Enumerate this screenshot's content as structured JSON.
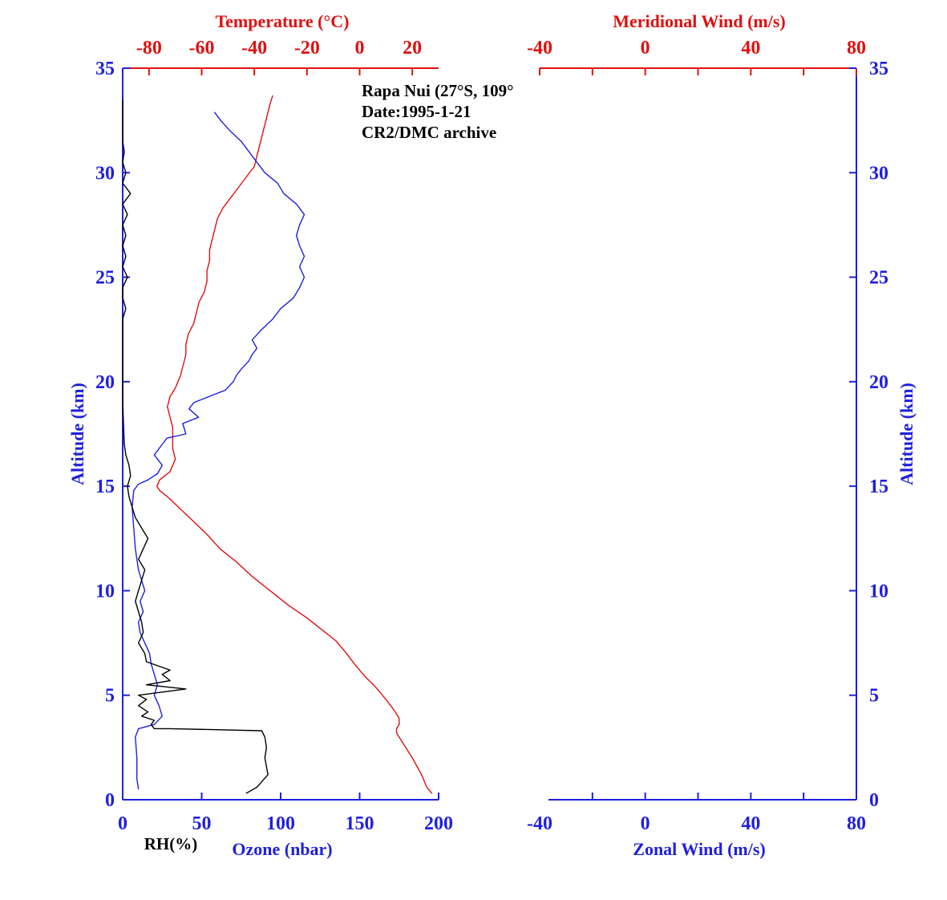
{
  "chart_data": [
    {
      "type": "line",
      "panel": "left",
      "annotation": [
        "Rapa Nui (27°S, 109°",
        "Date:1995-1-21",
        "CR2/DMC archive"
      ],
      "ylabel": "Altitude (km)",
      "ylim": [
        0,
        35
      ],
      "yticks": [
        "0",
        "5",
        "10",
        "15",
        "20",
        "25",
        "30",
        "35"
      ],
      "x_bottom": {
        "label": "Ozone (nbar)",
        "lim": [
          0,
          200
        ],
        "ticks": [
          "0",
          "50",
          "100",
          "150",
          "200"
        ]
      },
      "x_bottom_secondary_label": "RH(%)",
      "x_top": {
        "label": "Temperature (°C)",
        "lim": [
          -90,
          30
        ],
        "ticks": [
          "-80",
          "-60",
          "-40",
          "-20",
          "0",
          "20"
        ]
      },
      "colors": {
        "ozone": "#1f1fe0",
        "temperature": "#e01010",
        "rh": "#000000",
        "axis": "#1f1fe0"
      },
      "series": [
        {
          "name": "Temperature (°C)",
          "axis": "top",
          "points": [
            [
              27.5,
              0.3
            ],
            [
              25.5,
              0.6
            ],
            [
              23.5,
              1.2
            ],
            [
              20,
              2.0
            ],
            [
              16,
              2.8
            ],
            [
              14,
              3.2
            ],
            [
              14,
              3.4
            ],
            [
              15,
              3.6
            ],
            [
              15,
              3.9
            ],
            [
              13,
              4.3
            ],
            [
              10,
              4.8
            ],
            [
              6,
              5.4
            ],
            [
              2,
              5.9
            ],
            [
              -2,
              6.5
            ],
            [
              -5,
              7.0
            ],
            [
              -9,
              7.6
            ],
            [
              -14,
              8.1
            ],
            [
              -20,
              8.7
            ],
            [
              -27,
              9.3
            ],
            [
              -34,
              10.0
            ],
            [
              -41,
              10.7
            ],
            [
              -47,
              11.4
            ],
            [
              -53,
              12.0
            ],
            [
              -58,
              12.7
            ],
            [
              -63,
              13.3
            ],
            [
              -68,
              13.9
            ],
            [
              -73,
              14.5
            ],
            [
              -76,
              14.8
            ],
            [
              -77,
              15.0
            ],
            [
              -76,
              15.3
            ],
            [
              -72,
              15.7
            ],
            [
              -70,
              16.3
            ],
            [
              -71,
              16.8
            ],
            [
              -71,
              17.3
            ],
            [
              -71,
              17.8
            ],
            [
              -72,
              18.3
            ],
            [
              -73,
              18.8
            ],
            [
              -72,
              19.3
            ],
            [
              -70,
              19.7
            ],
            [
              -68,
              20.3
            ],
            [
              -67,
              20.8
            ],
            [
              -66,
              21.3
            ],
            [
              -66,
              21.8
            ],
            [
              -65,
              22.3
            ],
            [
              -63,
              22.8
            ],
            [
              -62,
              23.3
            ],
            [
              -61,
              23.8
            ],
            [
              -59,
              24.3
            ],
            [
              -58,
              24.8
            ],
            [
              -58,
              25.3
            ],
            [
              -57,
              25.8
            ],
            [
              -57,
              26.3
            ],
            [
              -56,
              26.8
            ],
            [
              -55,
              27.3
            ],
            [
              -54,
              27.8
            ],
            [
              -52,
              28.3
            ],
            [
              -49,
              28.8
            ],
            [
              -46,
              29.3
            ],
            [
              -43,
              29.8
            ],
            [
              -40,
              30.3
            ],
            [
              -39,
              30.8
            ],
            [
              -38,
              31.3
            ],
            [
              -37,
              31.8
            ],
            [
              -36,
              32.3
            ],
            [
              -35,
              32.8
            ],
            [
              -34,
              33.3
            ],
            [
              -33,
              33.7
            ]
          ]
        },
        {
          "name": "Ozone (nbar)",
          "axis": "bottom",
          "points": [
            [
              10,
              0.5
            ],
            [
              9,
              1.0
            ],
            [
              9,
              2.0
            ],
            [
              8,
              3.0
            ],
            [
              10,
              3.4
            ],
            [
              20,
              3.6
            ],
            [
              25,
              4.0
            ],
            [
              23,
              4.5
            ],
            [
              20,
              5.0
            ],
            [
              22,
              5.5
            ],
            [
              20,
              6.0
            ],
            [
              18,
              6.5
            ],
            [
              17,
              7.0
            ],
            [
              14,
              7.5
            ],
            [
              11,
              8.0
            ],
            [
              10,
              8.5
            ],
            [
              13,
              9.0
            ],
            [
              11,
              9.5
            ],
            [
              14,
              10.0
            ],
            [
              12,
              10.5
            ],
            [
              10,
              11.0
            ],
            [
              8,
              12.0
            ],
            [
              7,
              13.0
            ],
            [
              6,
              14.0
            ],
            [
              7,
              14.8
            ],
            [
              10,
              15.1
            ],
            [
              16,
              15.3
            ],
            [
              22,
              15.6
            ],
            [
              25,
              16.0
            ],
            [
              20,
              16.5
            ],
            [
              25,
              17.0
            ],
            [
              28,
              17.3
            ],
            [
              40,
              17.5
            ],
            [
              38,
              18.0
            ],
            [
              48,
              18.3
            ],
            [
              42,
              18.7
            ],
            [
              45,
              19.0
            ],
            [
              55,
              19.3
            ],
            [
              65,
              19.6
            ],
            [
              70,
              20.0
            ],
            [
              72,
              20.3
            ],
            [
              75,
              20.6
            ],
            [
              80,
              21.0
            ],
            [
              82,
              21.3
            ],
            [
              85,
              21.6
            ],
            [
              82,
              22.0
            ],
            [
              88,
              22.5
            ],
            [
              95,
              23.0
            ],
            [
              100,
              23.5
            ],
            [
              108,
              24.0
            ],
            [
              112,
              24.5
            ],
            [
              115,
              25.0
            ],
            [
              112,
              25.5
            ],
            [
              115,
              26.0
            ],
            [
              112,
              26.5
            ],
            [
              110,
              27.0
            ],
            [
              112,
              27.5
            ],
            [
              115,
              28.0
            ],
            [
              110,
              28.5
            ],
            [
              102,
              29.0
            ],
            [
              98,
              29.5
            ],
            [
              90,
              30.0
            ],
            [
              85,
              30.5
            ],
            [
              80,
              31.0
            ],
            [
              75,
              31.5
            ],
            [
              68,
              32.0
            ],
            [
              62,
              32.5
            ],
            [
              58,
              32.9
            ]
          ]
        },
        {
          "name": "RH(%)",
          "axis": "bottom",
          "points": [
            [
              78,
              0.3
            ],
            [
              85,
              0.6
            ],
            [
              92,
              1.2
            ],
            [
              90,
              2.0
            ],
            [
              91,
              2.5
            ],
            [
              90,
              3.0
            ],
            [
              88,
              3.3
            ],
            [
              30,
              3.4
            ],
            [
              20,
              3.4
            ],
            [
              18,
              3.6
            ],
            [
              20,
              3.8
            ],
            [
              12,
              4.0
            ],
            [
              16,
              4.2
            ],
            [
              10,
              4.5
            ],
            [
              15,
              4.8
            ],
            [
              10,
              5.0
            ],
            [
              40,
              5.3
            ],
            [
              15,
              5.5
            ],
            [
              30,
              5.7
            ],
            [
              25,
              6.0
            ],
            [
              30,
              6.2
            ],
            [
              15,
              6.6
            ],
            [
              14,
              7.0
            ],
            [
              10,
              7.5
            ],
            [
              13,
              8.0
            ],
            [
              12,
              8.5
            ],
            [
              10,
              9.0
            ],
            [
              8,
              9.5
            ],
            [
              10,
              10.0
            ],
            [
              12,
              10.5
            ],
            [
              14,
              11.0
            ],
            [
              10,
              11.5
            ],
            [
              13,
              12.0
            ],
            [
              16,
              12.5
            ],
            [
              12,
              13.0
            ],
            [
              8,
              13.5
            ],
            [
              6,
              14.0
            ],
            [
              4,
              14.5
            ],
            [
              3,
              15.0
            ],
            [
              5,
              15.5
            ],
            [
              4,
              16.0
            ],
            [
              2,
              16.5
            ],
            [
              1,
              17.0
            ],
            [
              0.5,
              18.0
            ],
            [
              0,
              19.0
            ],
            [
              0,
              23.0
            ],
            [
              2,
              23.5
            ],
            [
              0,
              24.0
            ],
            [
              0,
              24.5
            ],
            [
              3,
              25.0
            ],
            [
              0,
              25.5
            ],
            [
              2,
              26.0
            ],
            [
              0,
              26.5
            ],
            [
              2,
              27.0
            ],
            [
              0,
              27.5
            ],
            [
              3,
              28.0
            ],
            [
              0,
              28.5
            ],
            [
              5,
              29.0
            ],
            [
              0,
              29.5
            ],
            [
              2,
              30.0
            ],
            [
              0,
              30.5
            ],
            [
              1,
              31.0
            ],
            [
              0,
              31.5
            ],
            [
              0,
              33.5
            ]
          ]
        }
      ]
    },
    {
      "type": "line",
      "panel": "right",
      "ylabel": "Altitude (km)",
      "ylim": [
        0,
        35
      ],
      "yticks": [
        "0",
        "5",
        "10",
        "15",
        "20",
        "25",
        "30",
        "35"
      ],
      "x_bottom": {
        "label": "Zonal Wind (m/s)",
        "lim": [
          -40,
          80
        ],
        "ticks": [
          "-40",
          "0",
          "40",
          "80"
        ]
      },
      "x_top": {
        "label": "Meridional Wind (m/s)",
        "lim": [
          -40,
          80
        ],
        "ticks": [
          "-40",
          "0",
          "40",
          "80"
        ]
      },
      "series": []
    }
  ]
}
